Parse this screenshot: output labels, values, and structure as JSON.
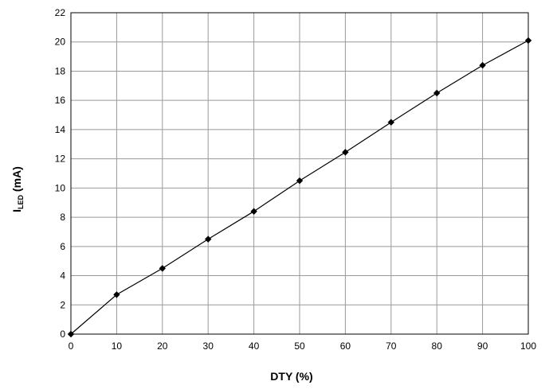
{
  "chart_data": {
    "type": "line",
    "x": [
      0,
      10,
      20,
      30,
      40,
      50,
      60,
      70,
      80,
      90,
      100
    ],
    "series": [
      {
        "values": [
          0,
          2.7,
          4.5,
          6.5,
          8.4,
          10.5,
          12.45,
          14.5,
          16.5,
          18.4,
          20.1
        ]
      }
    ],
    "xlabel": "DTY (%)",
    "ylabel": {
      "main": "I",
      "sub": "LED",
      "unit": " (mA)"
    },
    "xlim": [
      0,
      100
    ],
    "ylim": [
      0,
      22
    ],
    "x_ticks": [
      "0",
      "10",
      "20",
      "30",
      "40",
      "50",
      "60",
      "70",
      "80",
      "90",
      "100"
    ],
    "y_ticks": [
      "0",
      "2",
      "4",
      "6",
      "8",
      "10",
      "12",
      "14",
      "16",
      "18",
      "20",
      "22"
    ],
    "grid": true,
    "legend": "none",
    "colors": {
      "line": "#000000",
      "marker": "#000000",
      "grid": "#999999",
      "frame": "#000000"
    }
  }
}
